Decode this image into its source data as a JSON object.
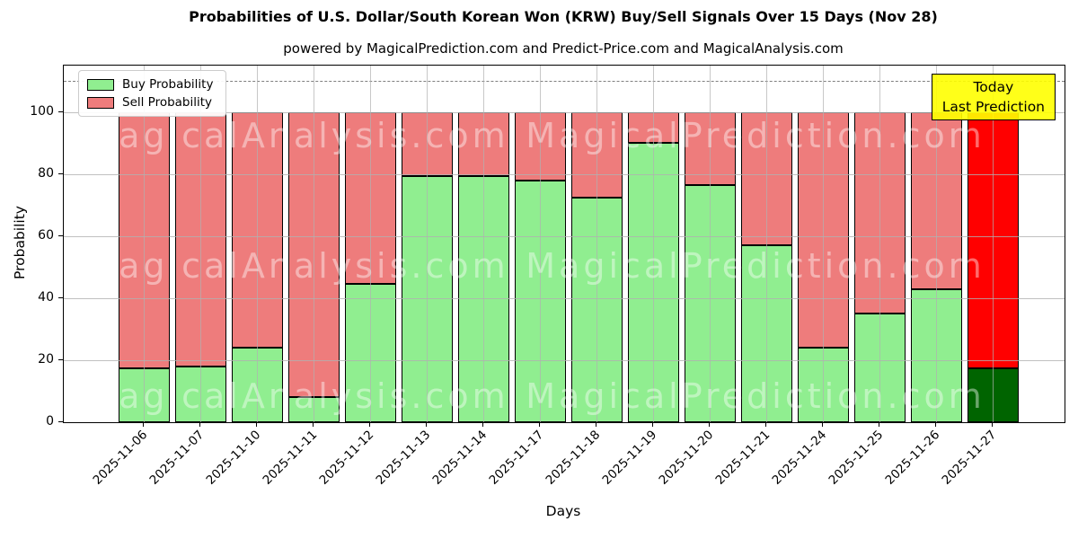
{
  "title": "Probabilities of U.S. Dollar/South Korean Won (KRW) Buy/Sell Signals Over 15 Days (Nov 28)",
  "subtitle": "powered by MagicalPrediction.com and Predict-Price.com and MagicalAnalysis.com",
  "legend": {
    "buy_label": "Buy Probability",
    "sell_label": "Sell Probability"
  },
  "today_box": {
    "line1": "Today",
    "line2": "Last Prediction"
  },
  "axes": {
    "xlabel": "Days",
    "ylabel": "Probability",
    "yticks": [
      0,
      20,
      40,
      60,
      80,
      100
    ]
  },
  "watermarks": {
    "left_text": "MagicalAnalysis.com",
    "right_text": "MagicalPrediction.com"
  },
  "colors": {
    "buy": "#90ee90",
    "sell": "#ee7c7c",
    "today_buy": "#006400",
    "today_sell": "#ff0000",
    "today_box_bg": "rgba(255,255,0,0.9)",
    "grid": "#b0b0b0",
    "dashed_line": "#7f7f7f"
  },
  "chart_data": {
    "type": "bar",
    "stacked": true,
    "title": "Probabilities of U.S. Dollar/South Korean Won (KRW) Buy/Sell Signals Over 15 Days (Nov 28)",
    "xlabel": "Days",
    "ylabel": "Probability",
    "ylim": [
      0,
      115
    ],
    "dashed_line_y": 110,
    "grid": true,
    "legend_position": "upper left",
    "categories": [
      "2025-11-06",
      "2025-11-07",
      "2025-11-10",
      "2025-11-11",
      "2025-11-12",
      "2025-11-13",
      "2025-11-14",
      "2025-11-17",
      "2025-11-18",
      "2025-11-19",
      "2025-11-20",
      "2025-11-21",
      "2025-11-24",
      "2025-11-25",
      "2025-11-26",
      "2025-11-27"
    ],
    "series": [
      {
        "name": "Buy Probability",
        "color": "#90ee90",
        "values": [
          17.5,
          18,
          24,
          8,
          44.5,
          79.5,
          79.5,
          78,
          72.5,
          90,
          76.5,
          57,
          24,
          35,
          43,
          17.5
        ]
      },
      {
        "name": "Sell Probability",
        "color": "#ee7c7c",
        "values": [
          82.5,
          82,
          76,
          92,
          55.5,
          20.5,
          20.5,
          22,
          27.5,
          10,
          23.5,
          43,
          76,
          65,
          57,
          82.5
        ]
      }
    ],
    "today_index": 15
  }
}
